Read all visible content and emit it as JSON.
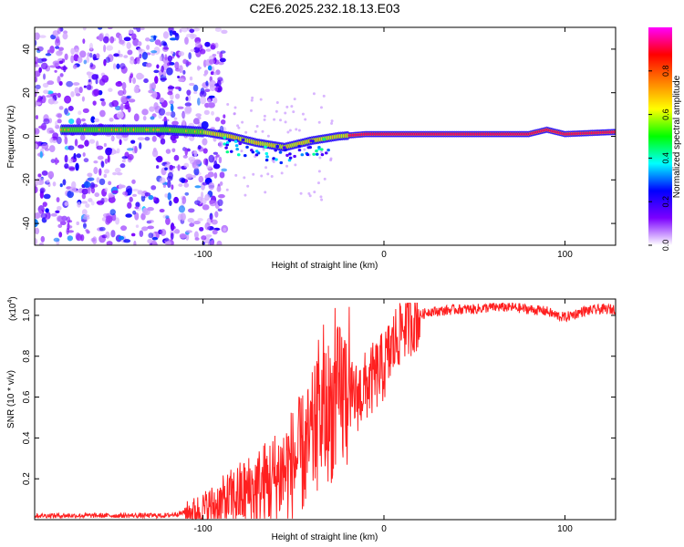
{
  "title": "C2E6.2025.232.18.13.E03",
  "chart_data": [
    {
      "type": "heatmap",
      "xlabel": "Height of straight line (km)",
      "ylabel": "Frequency (Hz)",
      "xlim": [
        -193,
        128
      ],
      "ylim": [
        -50,
        50
      ],
      "x_ticks": [
        -100,
        0,
        100
      ],
      "x_tick_labels": [
        "-100",
        "0",
        "100"
      ],
      "y_ticks": [
        -40,
        -20,
        0,
        20,
        40
      ],
      "y_tick_labels": [
        "-40",
        "-20",
        "0",
        "20",
        "40"
      ],
      "colorbar": {
        "label": "Normalized spectral amplitude",
        "range": [
          0,
          1
        ],
        "ticks": [
          0.0,
          0.2,
          0.4,
          0.6,
          0.8
        ],
        "tick_labels": [
          "0.0",
          "0.2",
          "0.4",
          "0.6",
          "0.8"
        ],
        "colormap": [
          "#ffffff",
          "#7b00ff",
          "#0000ff",
          "#00ffff",
          "#00ff00",
          "#ffff00",
          "#ff8000",
          "#ff0000",
          "#ff00ff"
        ]
      },
      "ridge_frequency": [
        {
          "x": -170,
          "f": 3
        },
        {
          "x": -120,
          "f": 3
        },
        {
          "x": -100,
          "f": 2
        },
        {
          "x": -85,
          "f": 0
        },
        {
          "x": -70,
          "f": -3
        },
        {
          "x": -55,
          "f": -5
        },
        {
          "x": -40,
          "f": -2
        },
        {
          "x": -25,
          "f": 0
        },
        {
          "x": -10,
          "f": 1
        },
        {
          "x": 0,
          "f": 1
        },
        {
          "x": 40,
          "f": 1
        },
        {
          "x": 80,
          "f": 1
        },
        {
          "x": 90,
          "f": 3
        },
        {
          "x": 100,
          "f": 1
        },
        {
          "x": 128,
          "f": 2
        }
      ]
    },
    {
      "type": "line",
      "xlabel": "Height of straight line (km)",
      "ylabel": "SNR (10 * v/v)",
      "y_scale_label": "(x10",
      "y_scale_exponent": "4",
      "xlim": [
        -193,
        128
      ],
      "ylim": [
        0,
        1.08
      ],
      "x_ticks": [
        -100,
        0,
        100
      ],
      "x_tick_labels": [
        "-100",
        "0",
        "100"
      ],
      "y_ticks": [
        0.2,
        0.4,
        0.6,
        0.8,
        1.0
      ],
      "y_tick_labels": [
        "0.2",
        "0.4",
        "0.6",
        "0.8",
        "1.0"
      ],
      "series": [
        {
          "name": "SNR",
          "color": "#ff2020",
          "x": [
            -193,
            -160,
            -120,
            -100,
            -90,
            -80,
            -70,
            -60,
            -50,
            -42,
            -35,
            -28,
            -22,
            -15,
            -10,
            -5,
            0,
            5,
            10,
            15,
            20,
            25,
            30,
            40,
            50,
            60,
            70,
            80,
            90,
            95,
            100,
            110,
            120,
            128
          ],
          "values": [
            0.02,
            0.02,
            0.02,
            0.05,
            0.08,
            0.12,
            0.15,
            0.2,
            0.28,
            0.35,
            0.5,
            0.55,
            0.62,
            0.6,
            0.65,
            0.7,
            0.75,
            0.85,
            0.95,
            0.98,
            1.0,
            1.02,
            1.02,
            1.03,
            1.03,
            1.04,
            1.04,
            1.03,
            1.02,
            1.0,
            0.99,
            1.02,
            1.03,
            1.03
          ]
        }
      ]
    }
  ]
}
